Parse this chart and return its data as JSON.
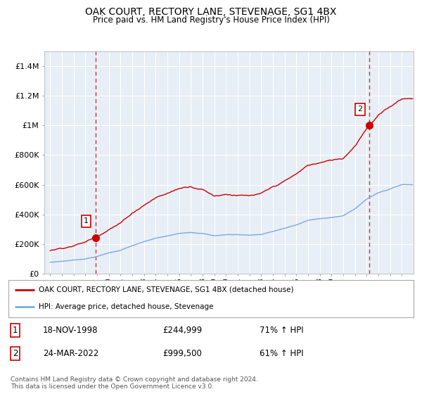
{
  "title": "OAK COURT, RECTORY LANE, STEVENAGE, SG1 4BX",
  "subtitle": "Price paid vs. HM Land Registry's House Price Index (HPI)",
  "background_color": "#ffffff",
  "plot_bg_color": "#e8eef5",
  "grid_color": "#ffffff",
  "ylim": [
    0,
    1500000
  ],
  "yticks": [
    0,
    200000,
    400000,
    600000,
    800000,
    1000000,
    1200000,
    1400000
  ],
  "ytick_labels": [
    "£0",
    "£200K",
    "£400K",
    "£600K",
    "£800K",
    "£1M",
    "£1.2M",
    "£1.4M"
  ],
  "red_line_color": "#cc0000",
  "blue_line_color": "#7aaadd",
  "marker_color": "#cc0000",
  "dashed_line_color": "#cc0000",
  "point1_x": 1998.88,
  "point1_y": 244999,
  "point2_x": 2022.22,
  "point2_y": 999500,
  "legend_label_red": "OAK COURT, RECTORY LANE, STEVENAGE, SG1 4BX (detached house)",
  "legend_label_blue": "HPI: Average price, detached house, Stevenage",
  "table_row1": [
    "1",
    "18-NOV-1998",
    "£244,999",
    "71% ↑ HPI"
  ],
  "table_row2": [
    "2",
    "24-MAR-2022",
    "£999,500",
    "61% ↑ HPI"
  ],
  "footer": "Contains HM Land Registry data © Crown copyright and database right 2024.\nThis data is licensed under the Open Government Licence v3.0.",
  "vline1_x": 1998.88,
  "vline2_x": 2022.22,
  "xlim_left": 1994.5,
  "xlim_right": 2026.0
}
